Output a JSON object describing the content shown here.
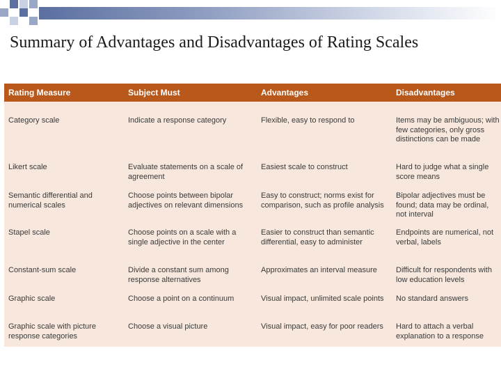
{
  "slide": {
    "title": "Summary of Advantages and Disadvantages of Rating Scales"
  },
  "table": {
    "headers": [
      "Rating Measure",
      "Subject Must",
      "Advantages",
      "Disadvantages"
    ],
    "rows": [
      [
        "Category scale",
        "Indicate a response category",
        "Flexible, easy to respond to",
        "Items may be ambiguous; with few categories, only gross distinctions can be made"
      ],
      [
        "Likert scale",
        "Evaluate statements on a scale of agreement",
        "Easiest scale to construct",
        "Hard to judge what a single score means"
      ],
      [
        "Semantic differential and numerical scales",
        "Choose points between bipolar adjectives on relevant dimensions",
        "Easy to construct; norms exist for comparison, such as profile analysis",
        "Bipolar adjectives must be found; data may be ordinal, not interval"
      ],
      [
        "Stapel scale",
        "Choose points on a scale with a single adjective in the center",
        "Easier to construct than semantic differential, easy to administer",
        "Endpoints are numerical, not verbal, labels"
      ],
      [
        "Constant-sum scale",
        "Divide a constant sum among response alternatives",
        "Approximates an interval measure",
        "Difficult for respondents with low education levels"
      ],
      [
        "Graphic scale",
        "Choose a point on a continuum",
        "Visual impact, unlimited scale points",
        "No standard answers"
      ],
      [
        "Graphic scale with picture response categories",
        "Choose a visual picture",
        "Visual impact, easy for poor readers",
        "Hard to attach a verbal explanation to a response"
      ]
    ]
  },
  "colors": {
    "header_bg": "#b9581b",
    "body_bg": "#f7e7dc",
    "accent": "#5b6fa0"
  }
}
